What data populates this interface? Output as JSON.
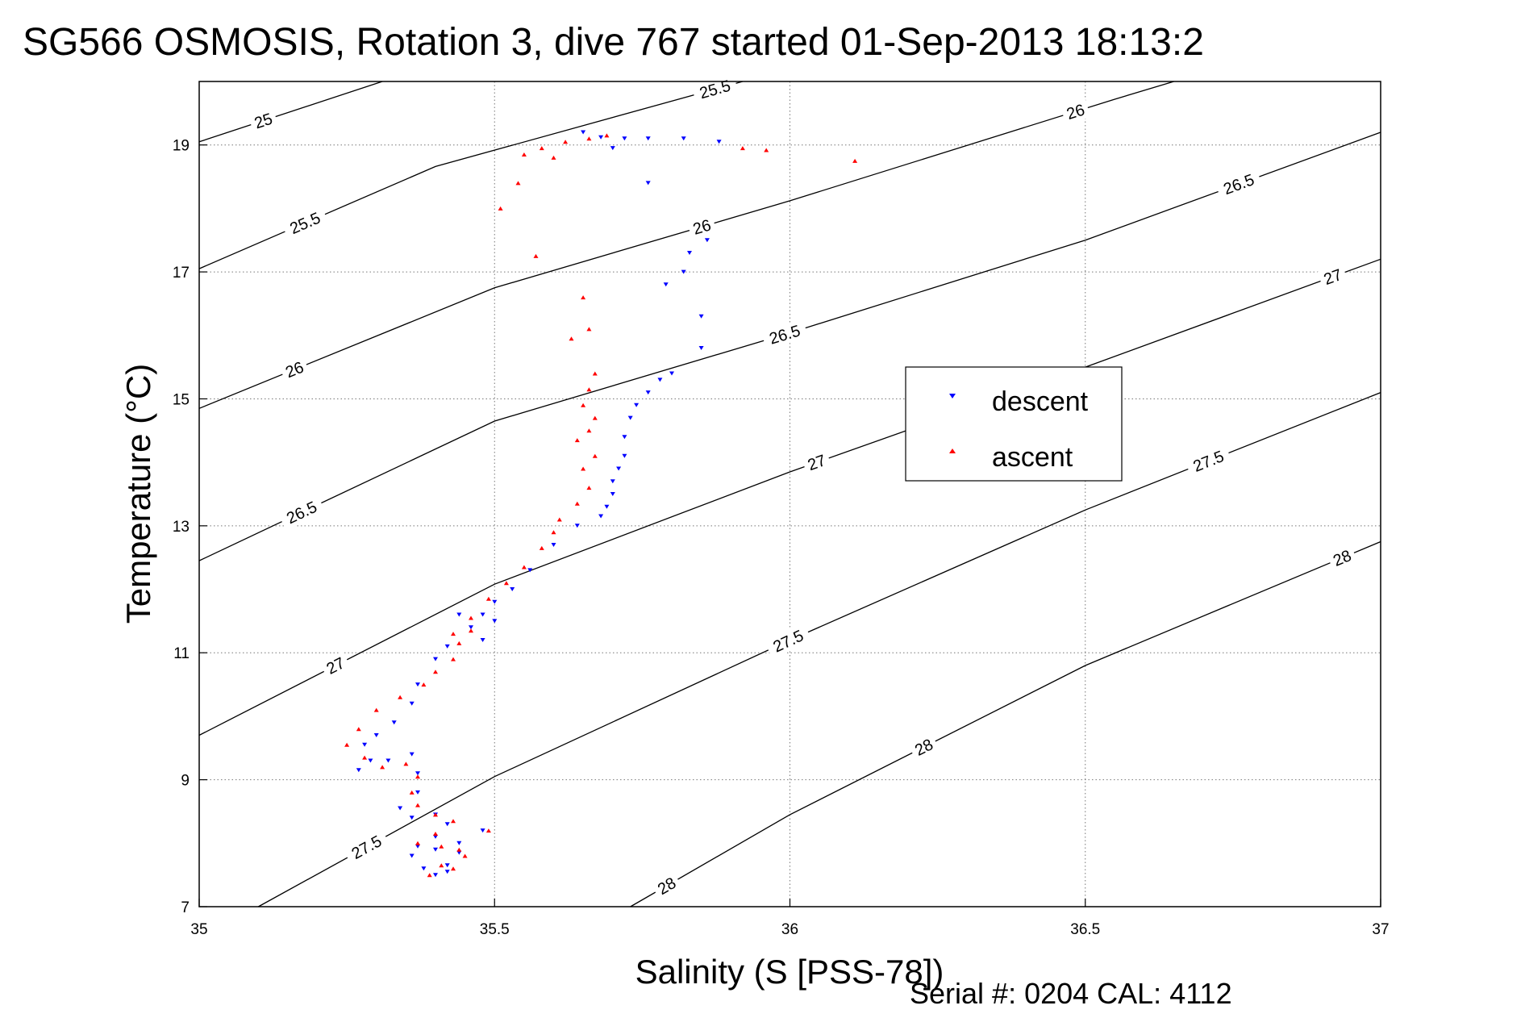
{
  "chart_data": {
    "type": "scatter",
    "title": "SG566 OSMOSIS, Rotation 3, dive 767 started 01-Sep-2013 18:13:2",
    "xlabel": "Salinity (S [PSS-78])",
    "ylabel": "Temperature (°C)",
    "xlim": [
      35,
      37
    ],
    "ylim": [
      7,
      20
    ],
    "xticks": [
      "35",
      "35.5",
      "36",
      "36.5",
      "37"
    ],
    "yticks": [
      "7",
      "9",
      "11",
      "13",
      "15",
      "17",
      "19"
    ],
    "grid": true,
    "legend": {
      "position": "right-center",
      "entries": [
        "descent",
        "ascent"
      ]
    },
    "footer": "Serial #: 0204  CAL: 4112",
    "contours": {
      "levels": [
        25,
        25.5,
        26,
        26.5,
        27,
        27.5,
        28
      ],
      "labels": [
        "25",
        "25.5",
        "26",
        "26.5",
        "27",
        "27.5",
        "28"
      ],
      "lines": [
        {
          "level": 25,
          "label": "25",
          "points": [
            [
              35,
              19.05
            ],
            [
              35.31,
              20.0
            ]
          ]
        },
        {
          "level": 25.5,
          "label": "25.5",
          "points": [
            [
              35,
              17.05
            ],
            [
              35.4,
              18.66
            ],
            [
              35.92,
              20.0
            ]
          ]
        },
        {
          "level": 26,
          "label": "26",
          "points": [
            [
              35,
              14.85
            ],
            [
              35.5,
              16.75
            ],
            [
              36,
              18.12
            ],
            [
              36.55,
              19.72
            ],
            [
              36.65,
              20.0
            ]
          ]
        },
        {
          "level": 26.5,
          "label": "26.5",
          "points": [
            [
              35,
              12.45
            ],
            [
              35.5,
              14.65
            ],
            [
              36,
              16.04
            ],
            [
              36.5,
              17.5
            ],
            [
              37,
              19.2
            ]
          ]
        },
        {
          "level": 27,
          "label": "27",
          "points": [
            [
              35,
              9.7
            ],
            [
              35.5,
              12.08
            ],
            [
              36,
              13.85
            ],
            [
              36.5,
              15.5
            ],
            [
              37,
              17.2
            ]
          ]
        },
        {
          "level": 27.5,
          "label": "27.5",
          "points": [
            [
              35.1,
              7.0
            ],
            [
              35.5,
              9.05
            ],
            [
              36,
              11.2
            ],
            [
              36.5,
              13.25
            ],
            [
              37,
              15.1
            ]
          ]
        },
        {
          "level": 28,
          "label": "28",
          "points": [
            [
              35.73,
              7.0
            ],
            [
              36,
              8.45
            ],
            [
              36.5,
              10.8
            ],
            [
              37,
              12.75
            ]
          ]
        }
      ]
    },
    "series": [
      {
        "name": "descent",
        "color": "#0000ff",
        "marker": "triangle-down",
        "points": [
          [
            35.65,
            19.2
          ],
          [
            35.68,
            19.12
          ],
          [
            35.72,
            19.1
          ],
          [
            35.76,
            19.1
          ],
          [
            35.82,
            19.1
          ],
          [
            35.88,
            19.05
          ],
          [
            35.7,
            18.95
          ],
          [
            35.76,
            18.4
          ],
          [
            35.86,
            17.5
          ],
          [
            35.83,
            17.3
          ],
          [
            35.82,
            17.0
          ],
          [
            35.79,
            16.8
          ],
          [
            35.85,
            16.3
          ],
          [
            35.85,
            15.8
          ],
          [
            35.8,
            15.4
          ],
          [
            35.78,
            15.3
          ],
          [
            35.76,
            15.1
          ],
          [
            35.74,
            14.9
          ],
          [
            35.73,
            14.7
          ],
          [
            35.72,
            14.4
          ],
          [
            35.72,
            14.1
          ],
          [
            35.71,
            13.9
          ],
          [
            35.7,
            13.7
          ],
          [
            35.7,
            13.5
          ],
          [
            35.69,
            13.3
          ],
          [
            35.68,
            13.15
          ],
          [
            35.64,
            13.0
          ],
          [
            35.6,
            12.7
          ],
          [
            35.56,
            12.3
          ],
          [
            35.53,
            12.0
          ],
          [
            35.5,
            11.8
          ],
          [
            35.48,
            11.6
          ],
          [
            35.5,
            11.5
          ],
          [
            35.48,
            11.2
          ],
          [
            35.46,
            11.4
          ],
          [
            35.44,
            11.6
          ],
          [
            35.42,
            11.1
          ],
          [
            35.4,
            10.9
          ],
          [
            35.37,
            10.5
          ],
          [
            35.36,
            10.2
          ],
          [
            35.33,
            9.9
          ],
          [
            35.3,
            9.7
          ],
          [
            35.28,
            9.55
          ],
          [
            35.29,
            9.3
          ],
          [
            35.27,
            9.15
          ],
          [
            35.32,
            9.3
          ],
          [
            35.36,
            9.4
          ],
          [
            35.37,
            9.1
          ],
          [
            35.37,
            8.8
          ],
          [
            35.34,
            8.55
          ],
          [
            35.36,
            8.4
          ],
          [
            35.4,
            8.45
          ],
          [
            35.42,
            8.3
          ],
          [
            35.4,
            8.1
          ],
          [
            35.37,
            7.95
          ],
          [
            35.36,
            7.8
          ],
          [
            35.4,
            7.9
          ],
          [
            35.44,
            8.0
          ],
          [
            35.48,
            8.2
          ],
          [
            35.44,
            7.85
          ],
          [
            35.42,
            7.65
          ],
          [
            35.4,
            7.5
          ],
          [
            35.42,
            7.55
          ],
          [
            35.38,
            7.6
          ]
        ]
      },
      {
        "name": "ascent",
        "color": "#ff0000",
        "marker": "triangle-up",
        "points": [
          [
            35.69,
            19.15
          ],
          [
            35.66,
            19.1
          ],
          [
            35.62,
            19.05
          ],
          [
            35.58,
            18.95
          ],
          [
            35.55,
            18.85
          ],
          [
            35.6,
            18.8
          ],
          [
            35.92,
            18.95
          ],
          [
            35.96,
            18.92
          ],
          [
            36.11,
            18.75
          ],
          [
            35.54,
            18.4
          ],
          [
            35.51,
            18.0
          ],
          [
            35.57,
            17.25
          ],
          [
            35.65,
            16.6
          ],
          [
            35.66,
            16.1
          ],
          [
            35.63,
            15.95
          ],
          [
            35.67,
            15.4
          ],
          [
            35.66,
            15.15
          ],
          [
            35.65,
            14.9
          ],
          [
            35.67,
            14.7
          ],
          [
            35.66,
            14.5
          ],
          [
            35.64,
            14.35
          ],
          [
            35.67,
            14.1
          ],
          [
            35.65,
            13.9
          ],
          [
            35.66,
            13.6
          ],
          [
            35.64,
            13.35
          ],
          [
            35.61,
            13.1
          ],
          [
            35.6,
            12.9
          ],
          [
            35.58,
            12.65
          ],
          [
            35.55,
            12.35
          ],
          [
            35.52,
            12.1
          ],
          [
            35.49,
            11.85
          ],
          [
            35.46,
            11.55
          ],
          [
            35.43,
            11.3
          ],
          [
            35.44,
            11.15
          ],
          [
            35.46,
            11.35
          ],
          [
            35.43,
            10.9
          ],
          [
            35.4,
            10.7
          ],
          [
            35.38,
            10.5
          ],
          [
            35.34,
            10.3
          ],
          [
            35.3,
            10.1
          ],
          [
            35.27,
            9.8
          ],
          [
            35.25,
            9.55
          ],
          [
            35.28,
            9.35
          ],
          [
            35.31,
            9.2
          ],
          [
            35.35,
            9.25
          ],
          [
            35.37,
            9.05
          ],
          [
            35.36,
            8.8
          ],
          [
            35.37,
            8.6
          ],
          [
            35.4,
            8.45
          ],
          [
            35.43,
            8.35
          ],
          [
            35.4,
            8.15
          ],
          [
            35.37,
            8.0
          ],
          [
            35.41,
            7.95
          ],
          [
            35.44,
            7.9
          ],
          [
            35.49,
            8.2
          ],
          [
            35.45,
            7.8
          ],
          [
            35.43,
            7.6
          ],
          [
            35.41,
            7.65
          ],
          [
            35.39,
            7.5
          ]
        ]
      }
    ]
  }
}
